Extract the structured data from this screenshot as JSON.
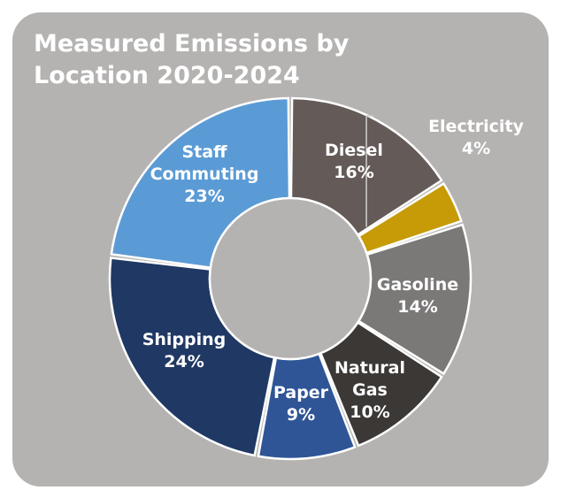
{
  "chart_data": {
    "type": "pie",
    "title": "Measured Emissions by Location 2020-2024",
    "slices": [
      {
        "label": "Diesel",
        "value_label": "16%",
        "value": 16,
        "color": "#645a57"
      },
      {
        "label": "Electricity",
        "value_label": "4%",
        "value": 4,
        "color": "#c69b07"
      },
      {
        "label": "Gasoline",
        "value_label": "14%",
        "value": 14,
        "color": "#7b7978"
      },
      {
        "label": "Natural Gas",
        "value_label": "10%",
        "value": 10,
        "color": "#3b3836"
      },
      {
        "label": "Paper",
        "value_label": "9%",
        "value": 9,
        "color": "#2f5597"
      },
      {
        "label": "Shipping",
        "value_label": "24%",
        "value": 24,
        "color": "#203864"
      },
      {
        "label": "Staff Commuting",
        "value_label": "23%",
        "value": 23,
        "color": "#5b9bd5"
      }
    ],
    "hole": true,
    "legend": "none",
    "label_color": "#ffffff",
    "background_color": "#b5b3b2"
  }
}
